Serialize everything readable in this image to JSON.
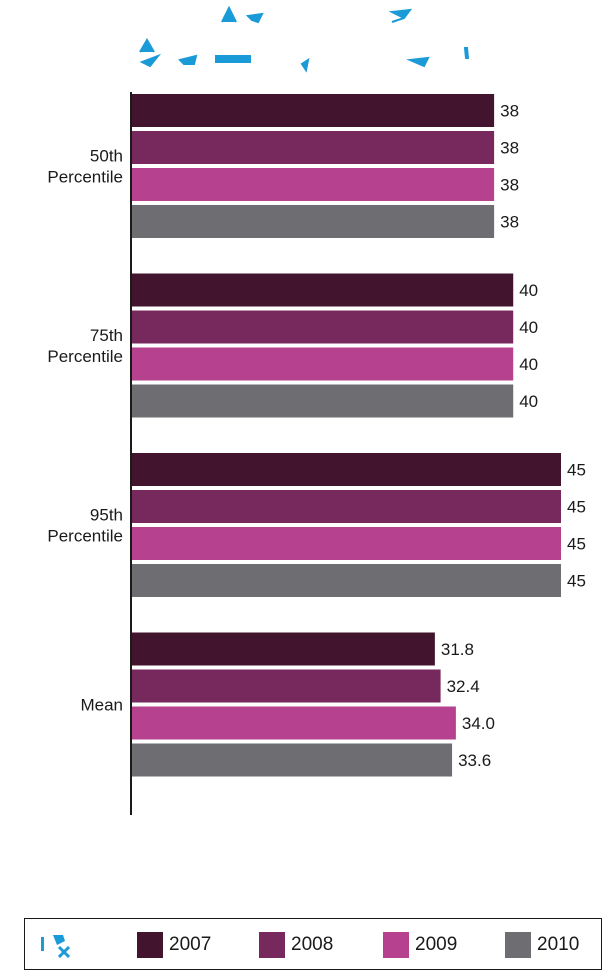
{
  "chart_data": {
    "type": "bar",
    "orientation": "horizontal",
    "categories": [
      "50th Percentile",
      "75th Percentile",
      "95th Percentile",
      "Mean"
    ],
    "series": [
      {
        "name": "2007",
        "color": "#42142e",
        "values": [
          38,
          40,
          45,
          31.8
        ],
        "labels": [
          "38",
          "40",
          "45",
          "31.8"
        ]
      },
      {
        "name": "2008",
        "color": "#77285c",
        "values": [
          38,
          40,
          45,
          32.4
        ],
        "labels": [
          "38",
          "40",
          "45",
          "32.4"
        ]
      },
      {
        "name": "2009",
        "color": "#b5418f",
        "values": [
          38,
          40,
          45,
          34.0
        ],
        "labels": [
          "38",
          "40",
          "45",
          "34.0"
        ]
      },
      {
        "name": "2010",
        "color": "#6e6e72",
        "values": [
          38,
          40,
          45,
          33.6
        ],
        "labels": [
          "38",
          "40",
          "45",
          "33.6"
        ]
      }
    ],
    "category_label_lines": [
      [
        "50th",
        "Percentile"
      ],
      [
        "75th",
        "Percentile"
      ],
      [
        "95th",
        "Percentile"
      ],
      [
        "Mean"
      ]
    ],
    "xlim": [
      0,
      45
    ],
    "grid": false,
    "legend": "bottom",
    "title": ""
  },
  "colors": {
    "title_glyph": "#1a9ad6",
    "legend_mark": "#1a9ad6",
    "axis": "#1a1a1a"
  }
}
